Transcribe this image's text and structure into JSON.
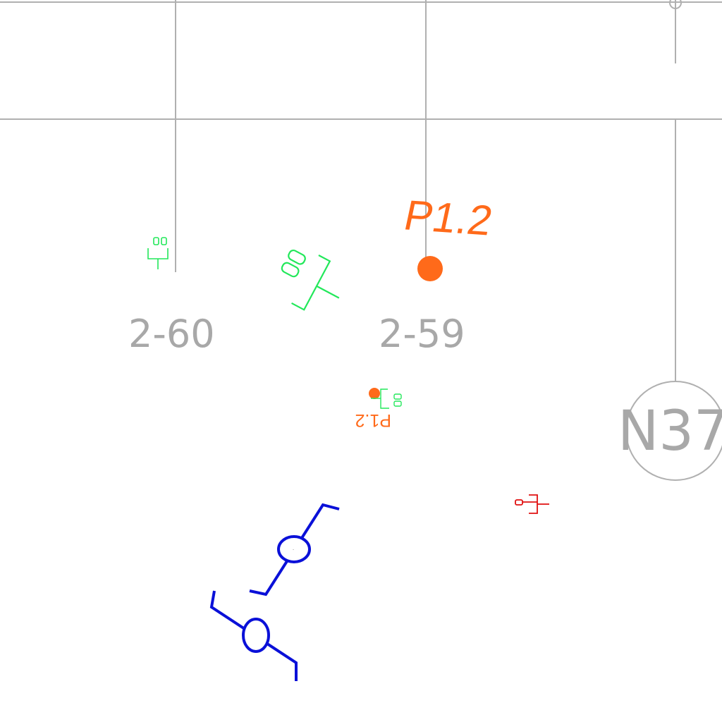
{
  "labels": {
    "grid_2_60": "2-60",
    "grid_2_59": "2-59",
    "axis_n37": "N37",
    "point_p1_2": "P1.2",
    "point_p1_2_flipped": "P1.2"
  },
  "colors": {
    "grid_line": "#b0b0b0",
    "grid_text": "#a8a8a8",
    "orange_point": "#ff6a1a",
    "green_symbol": "#22e85a",
    "blue_symbol": "#0a10d8",
    "red_symbol": "#e01010"
  },
  "icons": {
    "green_receptacle": "green-duplex-outlet-icon",
    "blue_fixture": "blue-wall-light-icon",
    "red_symbol": "red-switch-icon",
    "orange_point": "orange-dot-marker"
  }
}
